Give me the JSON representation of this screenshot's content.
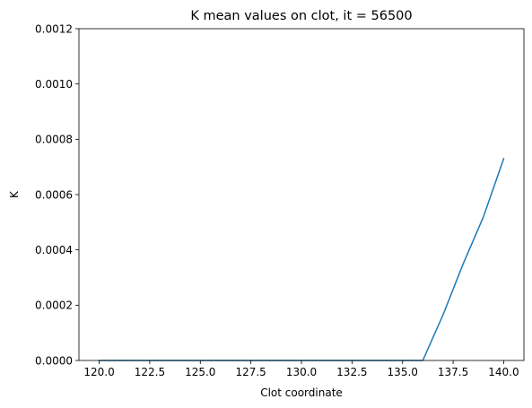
{
  "chart_data": {
    "type": "line",
    "title": "K mean values on clot, it = 56500",
    "xlabel": "Clot coordinate",
    "ylabel": "K",
    "xlim": [
      119.0,
      141.0
    ],
    "ylim": [
      0.0,
      0.0012
    ],
    "xticks": [
      120.0,
      122.5,
      125.0,
      127.5,
      130.0,
      132.5,
      135.0,
      137.5,
      140.0
    ],
    "xtick_labels": [
      "120.0",
      "122.5",
      "125.0",
      "127.5",
      "130.0",
      "132.5",
      "135.0",
      "137.5",
      "140.0"
    ],
    "yticks": [
      0.0,
      0.0002,
      0.0004,
      0.0006,
      0.0008,
      0.001,
      0.0012
    ],
    "ytick_labels": [
      "0.0000",
      "0.0002",
      "0.0004",
      "0.0006",
      "0.0008",
      "0.0010",
      "0.0012"
    ],
    "grid": false,
    "series": [
      {
        "color": "#1f77b4",
        "x": [
          120,
          121,
          122,
          123,
          124,
          125,
          126,
          127,
          128,
          129,
          130,
          131,
          132,
          133,
          134,
          135,
          136,
          137,
          138,
          139,
          140
        ],
        "y": [
          0,
          0,
          0,
          0,
          0,
          0,
          0,
          0,
          0,
          0,
          0,
          0,
          0,
          0,
          0,
          0,
          0,
          0.000165,
          0.00035,
          0.00052,
          0.00073
        ]
      }
    ]
  }
}
